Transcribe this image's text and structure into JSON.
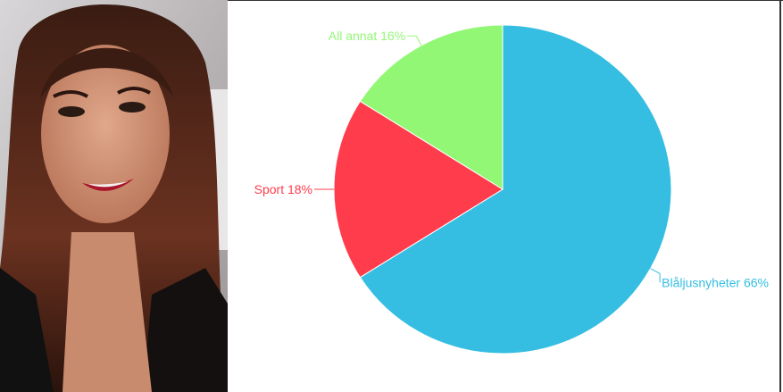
{
  "chart_data": {
    "type": "pie",
    "title": "",
    "start_angle": "top",
    "direction": "clockwise",
    "slices": [
      {
        "label": "Blåljusnyheter 66%",
        "name": "Blåljusnyheter",
        "value": 66,
        "color": "#35BEE2"
      },
      {
        "label": "Sport 18%",
        "name": "Sport",
        "value": 18,
        "color": "#FF3C4B"
      },
      {
        "label": "All annat 16%",
        "name": "All annat",
        "value": 16,
        "color": "#93F776"
      }
    ]
  },
  "photo": {
    "subject": "portrait-photo"
  }
}
